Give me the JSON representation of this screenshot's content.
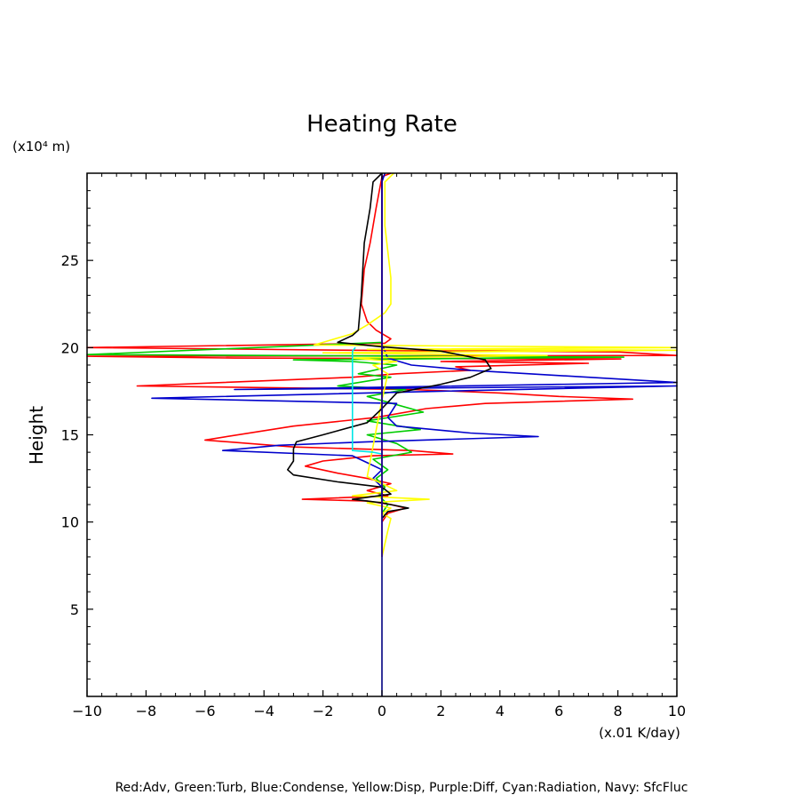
{
  "chart_data": {
    "type": "line",
    "title": "Heating Rate",
    "xlabel": "(x.01 K/day)",
    "ylabel": "Height",
    "y_unit": "(x10⁴ m)",
    "xlim": [
      -10,
      10
    ],
    "ylim": [
      0,
      30
    ],
    "x_ticks": [
      -10,
      -8,
      -6,
      -4,
      -2,
      0,
      2,
      4,
      6,
      8,
      10
    ],
    "x_tick_labels": [
      "−10",
      "−8",
      "−6",
      "−4",
      "−2",
      "0",
      "2",
      "4",
      "6",
      "8",
      "10"
    ],
    "y_ticks": [
      5,
      10,
      15,
      20,
      25
    ],
    "y_tick_labels": [
      "5",
      "10",
      "15",
      "20",
      "25"
    ],
    "grid": false,
    "legend_text": "Red:Adv, Green:Turb, Blue:Condense, Yellow:Disp, Purple:Diff, Cyan:Radiation, Navy: SfcFluc",
    "legend_position": "bottom",
    "series": [
      {
        "color": "#ff0000",
        "points": [
          [
            0.3,
            30
          ],
          [
            0.0,
            29.8
          ],
          [
            -0.2,
            28
          ],
          [
            -0.4,
            26
          ],
          [
            -0.6,
            24.5
          ],
          [
            -0.7,
            22.5
          ],
          [
            -0.5,
            21.5
          ],
          [
            -0.2,
            21
          ],
          [
            0.3,
            20.5
          ],
          [
            0.1,
            20.25
          ],
          [
            -10,
            20
          ],
          [
            -1,
            19.85
          ],
          [
            8,
            19.75
          ],
          [
            10,
            19.55
          ],
          [
            -10,
            19.5
          ],
          [
            -5,
            19.4
          ],
          [
            8.1,
            19.35
          ],
          [
            2,
            19.2
          ],
          [
            7,
            19.1
          ],
          [
            2.5,
            18.9
          ],
          [
            3,
            18.7
          ],
          [
            0.5,
            18.5
          ],
          [
            -1,
            18.3
          ],
          [
            -8.3,
            17.8
          ],
          [
            1,
            17.6
          ],
          [
            4,
            17.4
          ],
          [
            6,
            17.2
          ],
          [
            8.5,
            17.05
          ],
          [
            3.5,
            16.8
          ],
          [
            1.5,
            16.5
          ],
          [
            -0.2,
            16
          ],
          [
            -3,
            15.5
          ],
          [
            -6,
            14.7
          ],
          [
            -3,
            14.3
          ],
          [
            1,
            14.1
          ],
          [
            2.4,
            13.9
          ],
          [
            -0.3,
            13.8
          ],
          [
            -2,
            13.5
          ],
          [
            -2.6,
            13.2
          ],
          [
            -1.5,
            12.8
          ],
          [
            -0.5,
            12.5
          ],
          [
            0.3,
            12.2
          ],
          [
            -0.5,
            11.8
          ],
          [
            0.2,
            11.5
          ],
          [
            -2.7,
            11.3
          ],
          [
            -0.5,
            11.2
          ],
          [
            0.3,
            11.0
          ],
          [
            0.8,
            10.8
          ],
          [
            0.2,
            10.5
          ],
          [
            0.0,
            10
          ]
        ]
      },
      {
        "color": "#00cc00",
        "points": [
          [
            0,
            20.3
          ],
          [
            -10,
            19.6
          ],
          [
            8.2,
            19.45
          ],
          [
            -3,
            19.3
          ],
          [
            -1,
            19.2
          ],
          [
            0.5,
            19.0
          ],
          [
            -0.8,
            18.5
          ],
          [
            0.3,
            18.3
          ],
          [
            -1.5,
            17.8
          ],
          [
            0.8,
            17.6
          ],
          [
            -0.5,
            17.2
          ],
          [
            1.4,
            16.3
          ],
          [
            -0.5,
            15.8
          ],
          [
            1.3,
            15.3
          ],
          [
            -0.5,
            15.0
          ],
          [
            0.5,
            14.5
          ],
          [
            1.0,
            14.0
          ],
          [
            -0.3,
            13.6
          ],
          [
            0.2,
            13.0
          ],
          [
            -0.2,
            12.5
          ],
          [
            0.1,
            12.0
          ],
          [
            -0.1,
            11.5
          ],
          [
            0.2,
            11.0
          ],
          [
            0,
            10.5
          ]
        ]
      },
      {
        "color": "#0000cc",
        "points": [
          [
            0.1,
            30
          ],
          [
            0.0,
            29.5
          ],
          [
            0.0,
            20.2
          ],
          [
            0.2,
            19.4
          ],
          [
            1,
            19.0
          ],
          [
            3,
            18.7
          ],
          [
            5,
            18.5
          ],
          [
            10,
            18.0
          ],
          [
            -5,
            17.6
          ],
          [
            10,
            17.8
          ],
          [
            2,
            17.5
          ],
          [
            -7.8,
            17.1
          ],
          [
            0.5,
            16.8
          ],
          [
            0.2,
            16.0
          ],
          [
            0.5,
            15.5
          ],
          [
            3,
            15.1
          ],
          [
            5.3,
            14.9
          ],
          [
            -0.5,
            14.6
          ],
          [
            -3.5,
            14.4
          ],
          [
            -5.4,
            14.1
          ],
          [
            -1,
            13.8
          ],
          [
            -0.5,
            13.4
          ],
          [
            0,
            13.0
          ],
          [
            -0.3,
            12.5
          ],
          [
            0,
            12.0
          ],
          [
            0,
            11.5
          ]
        ]
      },
      {
        "color": "#ffff00",
        "points": [
          [
            0.4,
            30
          ],
          [
            0.1,
            29.5
          ],
          [
            0.1,
            27
          ],
          [
            0.3,
            24
          ],
          [
            0.3,
            22.5
          ],
          [
            0.1,
            22
          ],
          [
            -0.5,
            21.3
          ],
          [
            -1.0,
            20.8
          ],
          [
            -2.3,
            20.15
          ],
          [
            10,
            20.0
          ],
          [
            -0.5,
            19.9
          ],
          [
            10,
            19.85
          ],
          [
            -2,
            19.7
          ],
          [
            5.6,
            19.55
          ],
          [
            -1,
            19.4
          ],
          [
            0.5,
            19.2
          ],
          [
            -0.3,
            19.0
          ],
          [
            0.2,
            18.5
          ],
          [
            0,
            17.0
          ],
          [
            -0.5,
            12.6
          ],
          [
            0.5,
            11.8
          ],
          [
            -1.0,
            11.5
          ],
          [
            1.6,
            11.3
          ],
          [
            -0.5,
            11.1
          ],
          [
            0.3,
            10.8
          ],
          [
            0.0,
            10.5
          ],
          [
            0.3,
            10.2
          ],
          [
            0.2,
            9.5
          ],
          [
            0.0,
            8.0
          ]
        ]
      },
      {
        "color": "#000000",
        "points": [
          [
            0,
            30
          ],
          [
            -0.3,
            29.5
          ],
          [
            -0.4,
            28
          ],
          [
            -0.6,
            26
          ],
          [
            -0.7,
            23
          ],
          [
            -0.8,
            21
          ],
          [
            -1,
            20.7
          ],
          [
            -1.5,
            20.3
          ],
          [
            0,
            20.05
          ],
          [
            2,
            19.8
          ],
          [
            3.5,
            19.3
          ],
          [
            3.7,
            18.8
          ],
          [
            3,
            18.3
          ],
          [
            2,
            17.9
          ],
          [
            0.5,
            17.4
          ],
          [
            0,
            16.5
          ],
          [
            -0.5,
            15.7
          ],
          [
            -2,
            15.0
          ],
          [
            -2.9,
            14.6
          ],
          [
            -3.0,
            14.2
          ],
          [
            -3.0,
            13.5
          ],
          [
            -3.2,
            13.0
          ],
          [
            -3.0,
            12.7
          ],
          [
            -1.5,
            12.3
          ],
          [
            0,
            12.0
          ],
          [
            0.3,
            11.6
          ],
          [
            -1,
            11.3
          ],
          [
            0,
            11.1
          ],
          [
            0.9,
            10.8
          ],
          [
            0.2,
            10.6
          ],
          [
            0.0,
            10.2
          ]
        ]
      },
      {
        "color": "#00e6e6",
        "points": [
          [
            -0.9,
            20.0
          ],
          [
            -1.0,
            19.8
          ],
          [
            -1.0,
            14.1
          ],
          [
            -0.3,
            14.0
          ],
          [
            0,
            13.9
          ]
        ]
      },
      {
        "color": "#cc00cc",
        "points": [
          [
            0,
            29.8
          ],
          [
            0,
            8.0
          ]
        ]
      },
      {
        "color": "#000080",
        "points": [
          [
            0,
            30
          ],
          [
            0,
            0
          ]
        ]
      }
    ]
  }
}
